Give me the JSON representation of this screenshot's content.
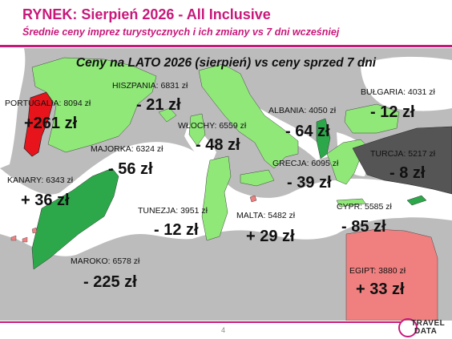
{
  "header": {
    "title": "RYNEK: Sierpień 2026 - All Inclusive",
    "subtitle": "Średnie ceny imprez turystycznych i ich zmiany vs 7 dni wcześniej"
  },
  "map": {
    "title": "Ceny na LATO 2026 (sierpień) vs ceny sprzed 7 dni",
    "colors": {
      "sea": "#ffffff",
      "land": "#bcbcbc",
      "strong_increase": "#e8141b",
      "increase": "#f08080",
      "decrease": "#8fe878",
      "strong_decrease": "#2ca84a",
      "smallest_decrease": "#555555"
    },
    "countries": [
      {
        "id": "portugal",
        "label": "PORTUGALIA: 8094 zł",
        "change": "+261 zł",
        "color": "strong_increase"
      },
      {
        "id": "spain",
        "label": "HISZPANIA: 6831 zł",
        "change": "- 21 zł",
        "color": "decrease"
      },
      {
        "id": "mallorca",
        "label": "MAJORKA: 6324 zł",
        "change": "- 56 zł",
        "color": "decrease"
      },
      {
        "id": "canary",
        "label": "KANARY: 6343 zł",
        "change": "+ 36 zł",
        "color": "increase"
      },
      {
        "id": "morocco",
        "label": "MAROKO: 6578 zł",
        "change": "- 225 zł",
        "color": "strong_decrease"
      },
      {
        "id": "italy",
        "label": "WŁOCHY: 6559 zł",
        "change": "- 48 zł",
        "color": "decrease"
      },
      {
        "id": "tunisia",
        "label": "TUNEZJA: 3951 zł",
        "change": "- 12 zł",
        "color": "decrease"
      },
      {
        "id": "malta",
        "label": "MALTA: 5482 zł",
        "change": "+ 29 zł",
        "color": "increase"
      },
      {
        "id": "albania",
        "label": "ALBANIA: 4050 zł",
        "change": "- 64 zł",
        "color": "strong_decrease"
      },
      {
        "id": "greece",
        "label": "GRECJA: 6095 zł",
        "change": "- 39 zł",
        "color": "decrease"
      },
      {
        "id": "bulgaria",
        "label": "BUŁGARIA: 4031 zł",
        "change": "- 12 zł",
        "color": "decrease"
      },
      {
        "id": "turkey",
        "label": "TURCJA: 5217 zł",
        "change": "- 8 zł",
        "color": "smallest_decrease"
      },
      {
        "id": "cyprus",
        "label": "CYPR: 5585 zł",
        "change": "- 85 zł",
        "color": "strong_decrease"
      },
      {
        "id": "egypt",
        "label": "EGIPT: 3880 zł",
        "change": "+ 33 zł",
        "color": "increase"
      }
    ]
  },
  "footer": {
    "page_number": "4",
    "logo_travel": "TRAVEL",
    "logo_data": "DATA"
  }
}
